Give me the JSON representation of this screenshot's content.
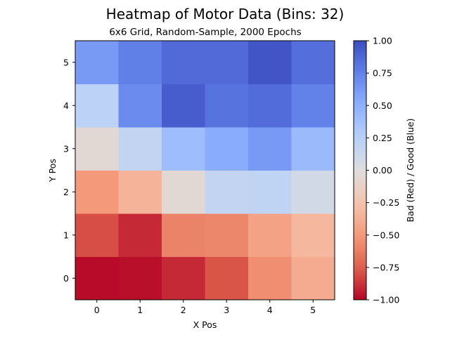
{
  "chart_data": {
    "type": "heatmap",
    "title": "Heatmap of Motor Data (Bins: 32)",
    "subtitle": "6x6 Grid, Random-Sample, 2000 Epochs",
    "xlabel": "X Pos",
    "ylabel": "Y Pos",
    "x": [
      0,
      1,
      2,
      3,
      4,
      5
    ],
    "y": [
      0,
      1,
      2,
      3,
      4,
      5
    ],
    "xlim": [
      -0.5,
      5.5
    ],
    "ylim": [
      -0.5,
      5.5
    ],
    "values": [
      [
        -0.98,
        -0.97,
        -0.9,
        -0.78,
        -0.55,
        -0.4
      ],
      [
        -0.8,
        -0.9,
        -0.6,
        -0.58,
        -0.45,
        -0.32
      ],
      [
        -0.5,
        -0.35,
        -0.05,
        0.18,
        0.2,
        0.08
      ],
      [
        -0.05,
        0.18,
        0.4,
        0.52,
        0.62,
        0.42
      ],
      [
        0.22,
        0.7,
        0.92,
        0.82,
        0.85,
        0.75
      ],
      [
        0.62,
        0.76,
        0.86,
        0.86,
        0.96,
        0.84
      ]
    ],
    "colormap": "coolwarm",
    "colorbar": {
      "label": "Bad (Red)     /     Good (Blue)",
      "range": [
        -1.0,
        1.0
      ],
      "ticks": [
        -1.0,
        -0.75,
        -0.5,
        -0.25,
        0.0,
        0.25,
        0.5,
        0.75,
        1.0
      ],
      "tick_labels": [
        "−1.00",
        "−0.75",
        "−0.50",
        "−0.25",
        "0.00",
        "0.25",
        "0.50",
        "0.75",
        "1.00"
      ]
    },
    "grid": false
  }
}
